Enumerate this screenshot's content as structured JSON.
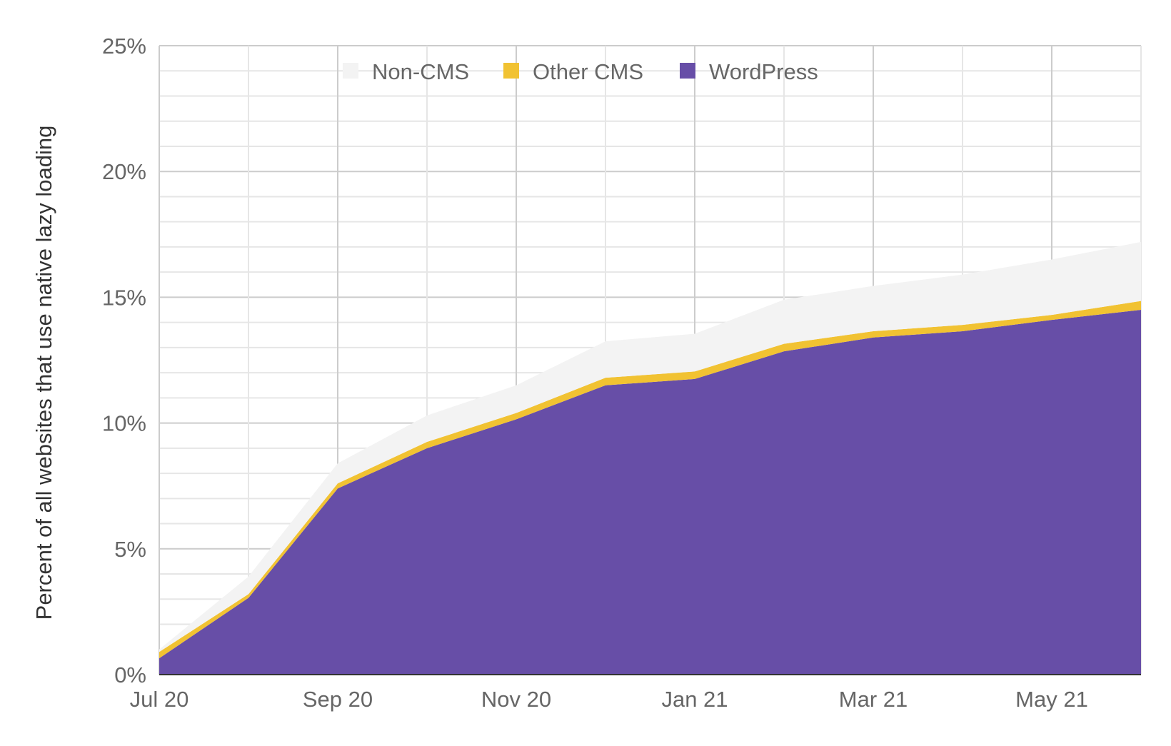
{
  "chart_data": {
    "type": "area",
    "stacked": true,
    "title": "",
    "xlabel": "",
    "ylabel": "Percent of all websites that use native lazy loading",
    "x": [
      "Jul 20",
      "Aug 20",
      "Sep 20",
      "Oct 20",
      "Nov 20",
      "Dec 20",
      "Jan 21",
      "Feb 21",
      "Mar 21",
      "Apr 21",
      "May 21",
      "Jun 21"
    ],
    "x_tick_labels": [
      "Jul 20",
      "Sep 20",
      "Nov 20",
      "Jan 21",
      "Mar 21",
      "May 21"
    ],
    "y_tick_labels": [
      "0%",
      "5%",
      "10%",
      "15%",
      "20%",
      "25%"
    ],
    "ylim": [
      0,
      25
    ],
    "grid": true,
    "legend_position": "top-center",
    "series": [
      {
        "name": "WordPress",
        "color": "#674ea7",
        "values": [
          0.65,
          3.05,
          7.4,
          9.0,
          10.15,
          11.5,
          11.75,
          12.85,
          13.4,
          13.65,
          14.1,
          14.5
        ]
      },
      {
        "name": "Other CMS",
        "color": "#f1c232",
        "values": [
          0.25,
          0.15,
          0.2,
          0.25,
          0.25,
          0.3,
          0.3,
          0.3,
          0.25,
          0.25,
          0.2,
          0.35
        ]
      },
      {
        "name": "Non-CMS",
        "color": "#f3f3f3",
        "values": [
          0.1,
          0.7,
          0.8,
          1.05,
          1.1,
          1.45,
          1.5,
          1.75,
          1.8,
          2.0,
          2.2,
          2.35
        ]
      }
    ],
    "legend_order": [
      "Non-CMS",
      "Other CMS",
      "WordPress"
    ]
  }
}
